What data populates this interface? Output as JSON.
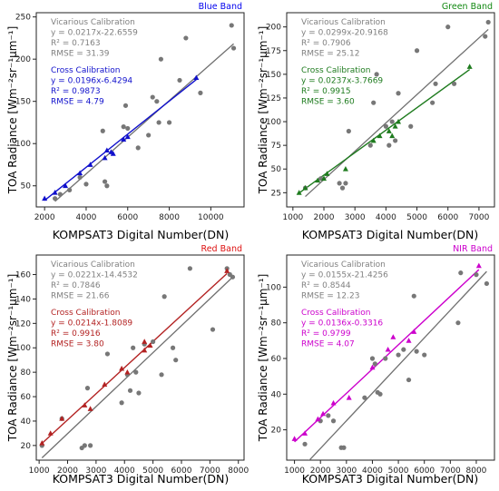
{
  "figure": {
    "x_label": "KOMPSAT3 Digital Number(DN)",
    "y_label": "TOA Radiance [Wm⁻²sr⁻¹μm⁻¹]"
  },
  "chart_data": [
    {
      "type": "scatter",
      "title": "Blue Band",
      "title_color": "#0000ee",
      "fit_color": "#1010cc",
      "xlim": [
        1600,
        11600
      ],
      "ylim": [
        25,
        255
      ],
      "xticks": [
        2000,
        4000,
        6000,
        8000,
        10000
      ],
      "yticks": [
        50,
        100,
        150,
        200,
        250
      ],
      "vicarious": {
        "lines": [
          "Vicarious Calibration",
          "y = 0.0217x-22.6559",
          "R² = 0.7163",
          "RMSE = 31.39"
        ],
        "slope": 0.0217,
        "intercept": -22.6559
      },
      "cross": {
        "lines": [
          "Cross Calibration",
          "y = 0.0196x-6.4294",
          "R² = 0.9873",
          "RMSE = 4.79"
        ],
        "slope": 0.0196,
        "intercept": -6.4294
      },
      "vicarious_points": {
        "x": [
          2500,
          2750,
          3200,
          3700,
          4000,
          4800,
          4900,
          5000,
          5800,
          5900,
          6000,
          6500,
          7000,
          7200,
          7400,
          7500,
          7600,
          8000,
          8500,
          8800,
          9500,
          11000,
          11100
        ],
        "y": [
          35,
          40,
          45,
          60,
          52,
          115,
          55,
          50,
          120,
          145,
          118,
          95,
          110,
          155,
          150,
          125,
          200,
          125,
          175,
          225,
          160,
          240,
          213
        ]
      },
      "cross_points": {
        "x": [
          2000,
          2500,
          3000,
          3700,
          4200,
          4900,
          5000,
          5200,
          5300,
          5800,
          6000,
          9300
        ],
        "y": [
          35,
          42,
          50,
          65,
          75,
          83,
          92,
          90,
          88,
          105,
          108,
          178
        ]
      }
    },
    {
      "type": "scatter",
      "title": "Green Band",
      "title_color": "#118811",
      "fit_color": "#1e7b1e",
      "xlim": [
        800,
        7500
      ],
      "ylim": [
        10,
        215
      ],
      "xticks": [
        1000,
        2000,
        3000,
        4000,
        5000,
        6000,
        7000
      ],
      "yticks": [
        25,
        50,
        75,
        100,
        125,
        150,
        175,
        200
      ],
      "vicarious": {
        "lines": [
          "Vicarious Calibration",
          "y = 0.0299x-20.9168",
          "R² = 0.7906",
          "RMSE = 25.12"
        ],
        "slope": 0.0299,
        "intercept": -20.9168
      },
      "cross": {
        "lines": [
          "Cross Calibration",
          "y = 0.0237x-3.7669",
          "R² = 0.9915",
          "RMSE = 3.60"
        ],
        "slope": 0.0237,
        "intercept": -3.7669
      },
      "vicarious_points": {
        "x": [
          1400,
          1900,
          2500,
          2600,
          2700,
          2800,
          3500,
          3600,
          3700,
          4000,
          4100,
          4200,
          4300,
          4400,
          4800,
          5000,
          5500,
          5600,
          6000,
          6200,
          7200,
          7300
        ],
        "y": [
          30,
          40,
          35,
          30,
          35,
          90,
          75,
          120,
          150,
          95,
          75,
          100,
          80,
          130,
          95,
          175,
          120,
          140,
          200,
          140,
          190,
          205
        ]
      },
      "cross_points": {
        "x": [
          1200,
          1400,
          1800,
          2000,
          2100,
          2700,
          3600,
          3800,
          4100,
          4200,
          4300,
          4400,
          6700
        ],
        "y": [
          25,
          30,
          38,
          40,
          45,
          50,
          80,
          85,
          90,
          85,
          95,
          100,
          158
        ]
      }
    },
    {
      "type": "scatter",
      "title": "Red Band",
      "title_color": "#dd1111",
      "fit_color": "#b32222",
      "xlim": [
        900,
        8200
      ],
      "ylim": [
        8,
        176
      ],
      "xticks": [
        1000,
        2000,
        3000,
        4000,
        5000,
        6000,
        7000,
        8000
      ],
      "yticks": [
        20,
        40,
        60,
        80,
        100,
        120,
        140,
        160
      ],
      "vicarious": {
        "lines": [
          "Vicarious Calibration",
          "y = 0.0221x-14.4532",
          "R² = 0.7846",
          "RMSE = 21.66"
        ],
        "slope": 0.0221,
        "intercept": -14.4532
      },
      "cross": {
        "lines": [
          "Cross Calibration",
          "y = 0.0214x-1.8089",
          "R² = 0.9916",
          "RMSE = 3.80"
        ],
        "slope": 0.0214,
        "intercept": -1.8089
      },
      "vicarious_points": {
        "x": [
          1100,
          1800,
          2500,
          2600,
          2700,
          2800,
          3400,
          3900,
          4100,
          4200,
          4300,
          4400,
          4500,
          4700,
          5000,
          5300,
          5400,
          5700,
          5800,
          6300,
          7100,
          7600,
          7700,
          7800
        ],
        "y": [
          20,
          42,
          18,
          20,
          67,
          20,
          95,
          55,
          78,
          65,
          100,
          80,
          63,
          103,
          105,
          78,
          142,
          100,
          90,
          165,
          115,
          165,
          160,
          158
        ]
      },
      "cross_points": {
        "x": [
          1100,
          1400,
          1800,
          2600,
          2800,
          3300,
          3900,
          4100,
          4700,
          4900,
          4700,
          7600
        ],
        "y": [
          22,
          30,
          42,
          53,
          50,
          70,
          83,
          80,
          98,
          102,
          105,
          163
        ]
      }
    },
    {
      "type": "scatter",
      "title": "NIR Band",
      "title_color": "#cc00cc",
      "fit_color": "#cc00cc",
      "xlim": [
        700,
        8700
      ],
      "ylim": [
        3,
        118
      ],
      "xticks": [
        1000,
        2000,
        3000,
        4000,
        5000,
        6000,
        7000,
        8000
      ],
      "yticks": [
        20,
        40,
        60,
        80,
        100
      ],
      "vicarious": {
        "lines": [
          "Vicarious Calibration",
          "y = 0.0155x-21.4256",
          "R² = 0.8544",
          "RMSE = 12.23"
        ],
        "slope": 0.0155,
        "intercept": -21.4256
      },
      "cross": {
        "lines": [
          "Cross Calibration",
          "y = 0.0136x-0.3316",
          "R² = 0.9799",
          "RMSE = 4.07"
        ],
        "slope": 0.0136,
        "intercept": -0.3316
      },
      "vicarious_points": {
        "x": [
          1400,
          2000,
          2300,
          2500,
          2800,
          2900,
          3700,
          4000,
          4100,
          4200,
          4300,
          4500,
          5000,
          5200,
          5400,
          5600,
          5700,
          6000,
          7300,
          7400,
          8000,
          8400
        ],
        "y": [
          12,
          25,
          28,
          25,
          10,
          10,
          38,
          60,
          57,
          41,
          40,
          60,
          62,
          65,
          48,
          95,
          64,
          62,
          80,
          108,
          107,
          102
        ]
      },
      "cross_points": {
        "x": [
          1000,
          1400,
          1900,
          2100,
          2500,
          3100,
          4000,
          4600,
          4800,
          5400,
          5600,
          8100
        ],
        "y": [
          15,
          18,
          26,
          29,
          35,
          38,
          55,
          65,
          72,
          70,
          75,
          112
        ]
      }
    }
  ]
}
